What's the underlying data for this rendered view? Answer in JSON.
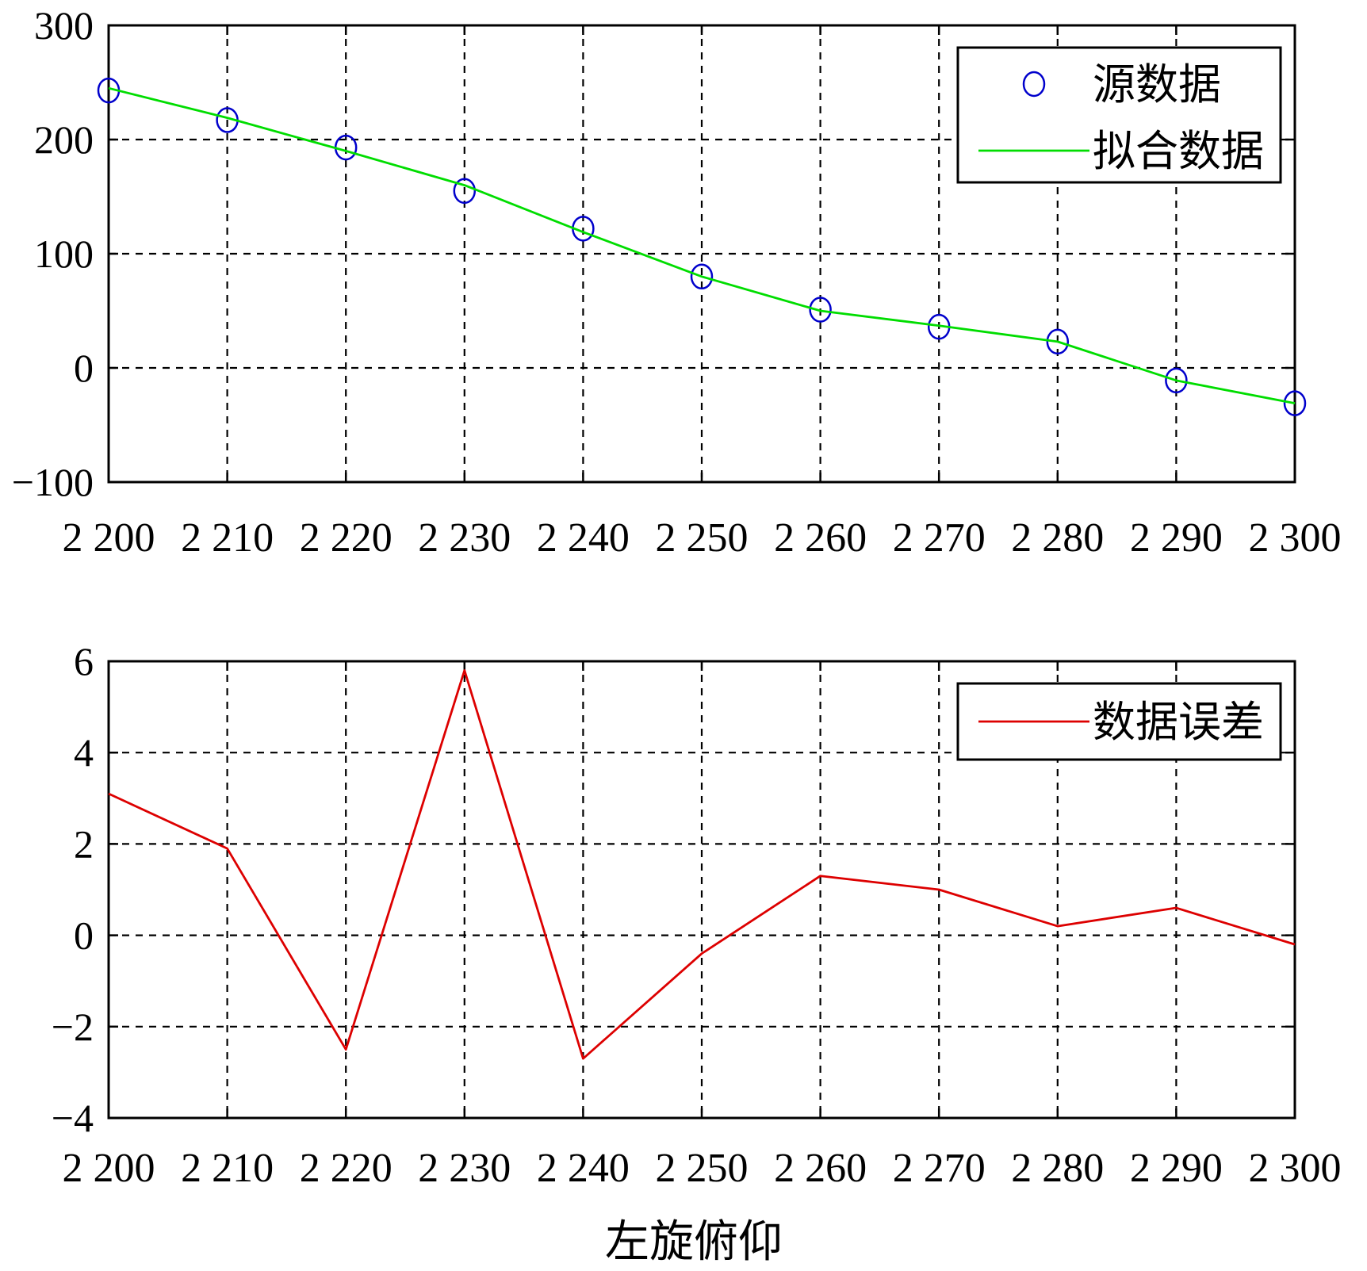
{
  "colors": {
    "axis": "#000000",
    "grid": "#000000",
    "source": "#0000cc",
    "fit": "#00dd00",
    "error": "#dd0000"
  },
  "chart_data": [
    {
      "type": "line",
      "x": [
        2200,
        2210,
        2220,
        2230,
        2240,
        2250,
        2260,
        2270,
        2280,
        2290,
        2300
      ],
      "x_tick_labels": [
        "2 200",
        "2 210",
        "2 220",
        "2 230",
        "2 240",
        "2 250",
        "2 260",
        "2 270",
        "2 280",
        "2 290",
        "2 300"
      ],
      "y_tick_labels": [
        "300",
        "200",
        "100",
        "0",
        "−100"
      ],
      "y_ticks": [
        300,
        200,
        100,
        0,
        -100
      ],
      "xlim": [
        2200,
        2300
      ],
      "ylim": [
        -100,
        300
      ],
      "grid": true,
      "legend_position": "top-right",
      "xlabel": "",
      "ylabel": "",
      "series": [
        {
          "name": "源数据",
          "marker": "circle",
          "values": [
            243,
            217,
            193,
            155,
            122,
            80,
            51,
            36,
            23,
            -11,
            -31
          ]
        },
        {
          "name": "拟合数据",
          "marker": "none",
          "values": [
            245,
            219,
            190,
            160,
            119,
            80,
            50,
            37,
            23,
            -11,
            -31
          ]
        }
      ]
    },
    {
      "type": "line",
      "x": [
        2200,
        2210,
        2220,
        2230,
        2240,
        2250,
        2260,
        2270,
        2280,
        2290,
        2300
      ],
      "x_tick_labels": [
        "2 200",
        "2 210",
        "2 220",
        "2 230",
        "2 240",
        "2 250",
        "2 260",
        "2 270",
        "2 280",
        "2 290",
        "2 300"
      ],
      "y_tick_labels": [
        "6",
        "4",
        "2",
        "0",
        "−2",
        "−4"
      ],
      "y_ticks": [
        6,
        4,
        2,
        0,
        -2,
        -4
      ],
      "xlim": [
        2200,
        2300
      ],
      "ylim": [
        -4,
        6
      ],
      "grid": true,
      "legend_position": "top-right",
      "xlabel": "左旋俯仰",
      "ylabel": "",
      "series": [
        {
          "name": "数据误差",
          "marker": "none",
          "values": [
            3.1,
            1.9,
            -2.5,
            5.8,
            -2.7,
            -0.4,
            1.3,
            1.0,
            0.2,
            0.6,
            -0.2
          ]
        }
      ]
    }
  ]
}
